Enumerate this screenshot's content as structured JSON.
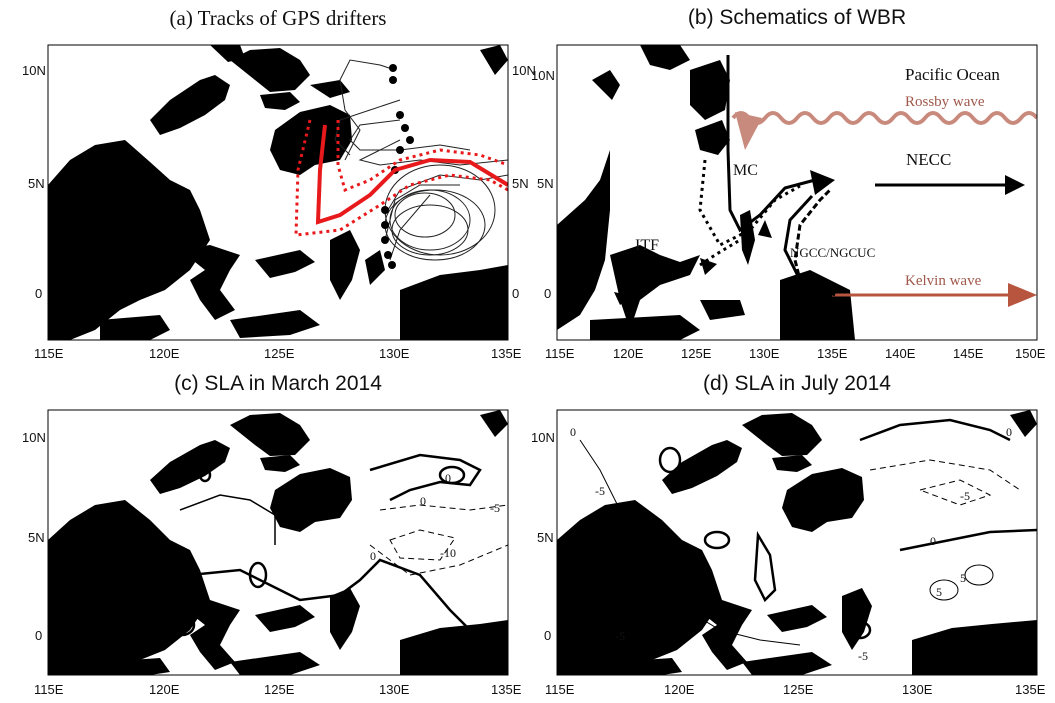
{
  "panels": {
    "a": {
      "title": "(a) Tracks of GPS drifters",
      "lon_ticks": [
        "115E",
        "120E",
        "125E",
        "130E",
        "135E"
      ],
      "lat_ticks": [
        "10N",
        "5N",
        "0"
      ]
    },
    "b": {
      "title": "(b) Schematics of WBR",
      "lon_ticks": [
        "115E",
        "120E",
        "125E",
        "130E",
        "135E",
        "140E",
        "145E",
        "150E"
      ],
      "lat_ticks": [
        "10N",
        "5N",
        "0"
      ],
      "labels": {
        "pacific": "Pacific Ocean",
        "rossby": "Rossby wave",
        "mc": "MC",
        "necc": "NECC",
        "ngcc": "NGCC/NGCUC",
        "itf": "ITF",
        "kelvin": "Kelvin wave"
      }
    },
    "c": {
      "title": "(c) SLA in March 2014",
      "lon_ticks": [
        "115E",
        "120E",
        "125E",
        "130E",
        "135E"
      ],
      "lat_ticks": [
        "10N",
        "5N",
        "0"
      ],
      "contour_labels": [
        "0",
        "0",
        "-5",
        "-10",
        "0"
      ]
    },
    "d": {
      "title": "(d) SLA in July 2014",
      "lon_ticks": [
        "115E",
        "120E",
        "125E",
        "130E",
        "135E"
      ],
      "lat_ticks": [
        "10N",
        "5N",
        "0"
      ],
      "contour_labels": [
        "0",
        "-5",
        "0",
        "-5",
        "0",
        "5",
        "5",
        "-5",
        "-5"
      ]
    }
  },
  "colors": {
    "land": "#000000",
    "drifter": "#e8191b",
    "rossby": "#c98a7e",
    "kelvin": "#b8553f"
  }
}
